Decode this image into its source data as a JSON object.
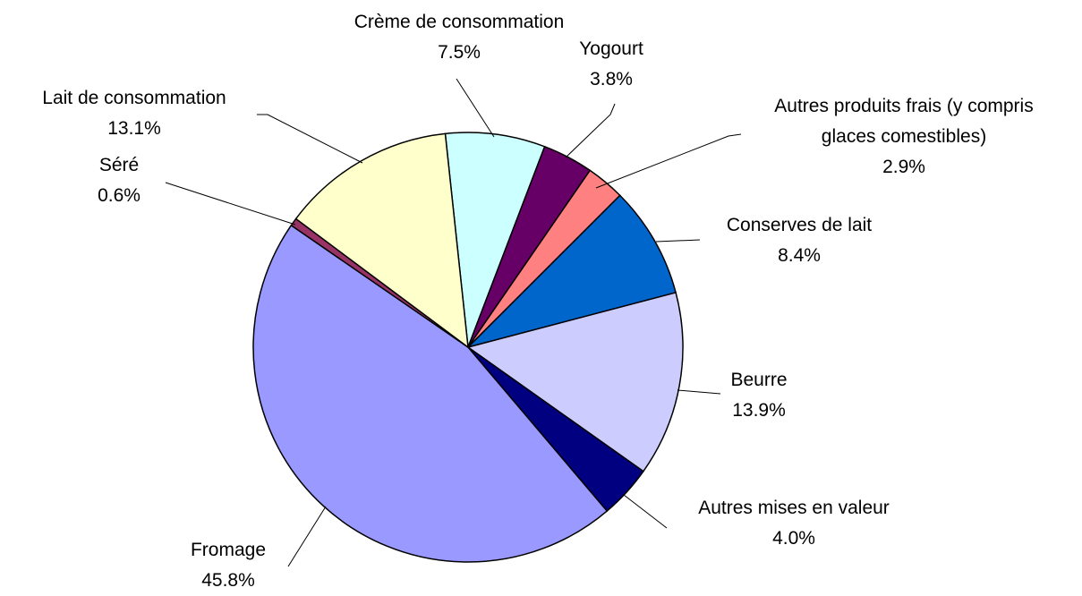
{
  "chart_data": {
    "type": "pie",
    "categories": [
      "Crème de consommation",
      "Yogourt",
      "Autres produits frais (y compris glaces comestibles)",
      "Conserves de lait",
      "Beurre",
      "Autres mises en valeur",
      "Fromage",
      "Séré",
      "Lait de consommation"
    ],
    "values": [
      7.5,
      3.8,
      2.9,
      8.4,
      13.9,
      4.0,
      45.8,
      0.6,
      13.1
    ],
    "value_labels": [
      "7.5%",
      "3.8%",
      "2.9%",
      "8.4%",
      "13.9%",
      "4.0%",
      "45.8%",
      "0.6%",
      "13.1%"
    ],
    "colors": [
      "#ccffff",
      "#660066",
      "#ff8080",
      "#0066cc",
      "#ccccff",
      "#000080",
      "#9999ff",
      "#993366",
      "#ffffcc"
    ]
  }
}
